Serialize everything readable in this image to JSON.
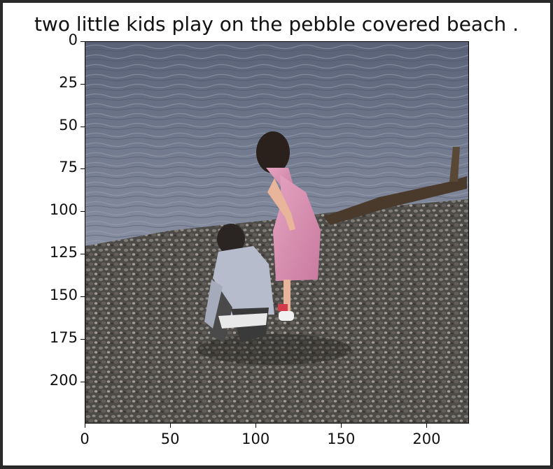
{
  "title": "two little kids play on the pebble covered beach .",
  "image": {
    "description_icon": "beach-photo-image",
    "width_data": 224,
    "height_data": 224
  },
  "axes": {
    "x_ticks": [
      {
        "value": 0,
        "label": "0"
      },
      {
        "value": 50,
        "label": "50"
      },
      {
        "value": 100,
        "label": "100"
      },
      {
        "value": 150,
        "label": "150"
      },
      {
        "value": 200,
        "label": "200"
      }
    ],
    "y_ticks": [
      {
        "value": 0,
        "label": "0"
      },
      {
        "value": 25,
        "label": "25"
      },
      {
        "value": 50,
        "label": "50"
      },
      {
        "value": 75,
        "label": "75"
      },
      {
        "value": 100,
        "label": "100"
      },
      {
        "value": 125,
        "label": "125"
      },
      {
        "value": 150,
        "label": "150"
      },
      {
        "value": 175,
        "label": "175"
      },
      {
        "value": 200,
        "label": "200"
      }
    ],
    "xlim": [
      0,
      224
    ],
    "ylim": [
      224,
      0
    ]
  }
}
